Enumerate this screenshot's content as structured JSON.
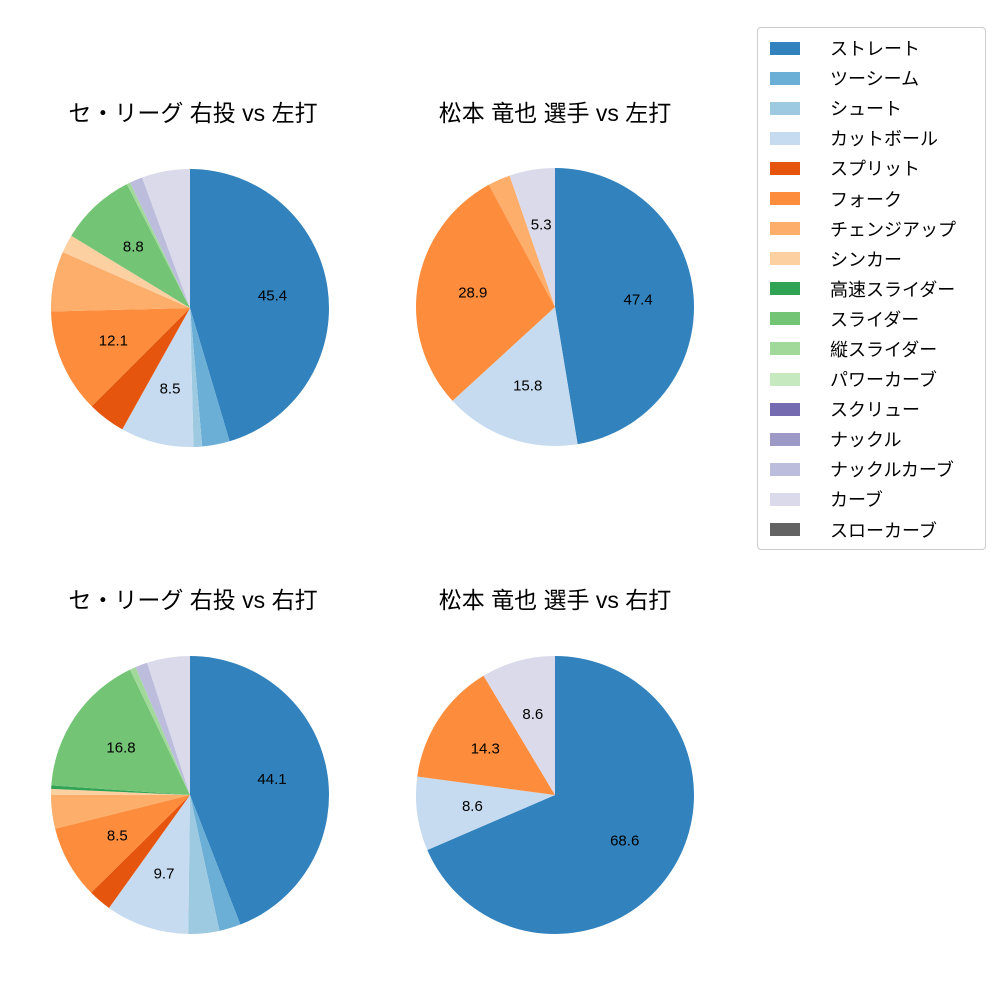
{
  "legend": {
    "items": [
      {
        "name": "ストレート",
        "color": "#3182bd"
      },
      {
        "name": "ツーシーム",
        "color": "#6baed6"
      },
      {
        "name": "シュート",
        "color": "#9ecae1"
      },
      {
        "name": "カットボール",
        "color": "#c6dbef"
      },
      {
        "name": "スプリット",
        "color": "#e6550d"
      },
      {
        "name": "フォーク",
        "color": "#fd8d3c"
      },
      {
        "name": "チェンジアップ",
        "color": "#fdae6b"
      },
      {
        "name": "シンカー",
        "color": "#fdd0a2"
      },
      {
        "name": "高速スライダー",
        "color": "#31a354"
      },
      {
        "name": "スライダー",
        "color": "#74c476"
      },
      {
        "name": "縦スライダー",
        "color": "#a1d99b"
      },
      {
        "name": "パワーカーブ",
        "color": "#c7e9c0"
      },
      {
        "name": "スクリュー",
        "color": "#756bb1"
      },
      {
        "name": "ナックル",
        "color": "#9e9ac8"
      },
      {
        "name": "ナックルカーブ",
        "color": "#bcbddc"
      },
      {
        "name": "カーブ",
        "color": "#dadaeb"
      },
      {
        "name": "スローカーブ",
        "color": "#636363"
      }
    ]
  },
  "chart_data": [
    {
      "type": "pie",
      "title": "セ・リーグ 右投 vs 左打",
      "start_angle": "top",
      "direction": "clockwise",
      "slices": [
        {
          "name": "ストレート",
          "value": 45.4,
          "label": "45.4"
        },
        {
          "name": "ツーシーム",
          "value": 3.2,
          "label": ""
        },
        {
          "name": "シュート",
          "value": 1.0,
          "label": ""
        },
        {
          "name": "カットボール",
          "value": 8.5,
          "label": "8.5"
        },
        {
          "name": "スプリット",
          "value": 4.4,
          "label": ""
        },
        {
          "name": "フォーク",
          "value": 12.1,
          "label": "12.1"
        },
        {
          "name": "チェンジアップ",
          "value": 7.0,
          "label": ""
        },
        {
          "name": "シンカー",
          "value": 2.1,
          "label": ""
        },
        {
          "name": "スライダー",
          "value": 8.8,
          "label": "8.8"
        },
        {
          "name": "縦スライダー",
          "value": 0.4,
          "label": ""
        },
        {
          "name": "ナックルカーブ",
          "value": 1.5,
          "label": ""
        },
        {
          "name": "カーブ",
          "value": 5.6,
          "label": ""
        }
      ]
    },
    {
      "type": "pie",
      "title": "松本 竜也 選手 vs 左打",
      "start_angle": "top",
      "direction": "clockwise",
      "slices": [
        {
          "name": "ストレート",
          "value": 47.4,
          "label": "47.4"
        },
        {
          "name": "カットボール",
          "value": 15.8,
          "label": "15.8"
        },
        {
          "name": "フォーク",
          "value": 28.9,
          "label": "28.9"
        },
        {
          "name": "チェンジアップ",
          "value": 2.6,
          "label": ""
        },
        {
          "name": "カーブ",
          "value": 5.3,
          "label": "5.3"
        }
      ]
    },
    {
      "type": "pie",
      "title": "セ・リーグ 右投 vs 右打",
      "start_angle": "top",
      "direction": "clockwise",
      "slices": [
        {
          "name": "ストレート",
          "value": 44.1,
          "label": "44.1"
        },
        {
          "name": "ツーシーム",
          "value": 2.5,
          "label": ""
        },
        {
          "name": "シュート",
          "value": 3.6,
          "label": ""
        },
        {
          "name": "カットボール",
          "value": 9.7,
          "label": "9.7"
        },
        {
          "name": "スプリット",
          "value": 2.7,
          "label": ""
        },
        {
          "name": "フォーク",
          "value": 8.5,
          "label": "8.5"
        },
        {
          "name": "チェンジアップ",
          "value": 3.9,
          "label": ""
        },
        {
          "name": "シンカー",
          "value": 0.7,
          "label": ""
        },
        {
          "name": "高速スライダー",
          "value": 0.4,
          "label": ""
        },
        {
          "name": "スライダー",
          "value": 16.8,
          "label": "16.8"
        },
        {
          "name": "縦スライダー",
          "value": 0.7,
          "label": ""
        },
        {
          "name": "ナックルカーブ",
          "value": 1.4,
          "label": ""
        },
        {
          "name": "カーブ",
          "value": 5.0,
          "label": ""
        }
      ]
    },
    {
      "type": "pie",
      "title": "松本 竜也 選手 vs 右打",
      "start_angle": "top",
      "direction": "clockwise",
      "slices": [
        {
          "name": "ストレート",
          "value": 68.6,
          "label": "68.6"
        },
        {
          "name": "カットボール",
          "value": 8.6,
          "label": "8.6"
        },
        {
          "name": "フォーク",
          "value": 14.3,
          "label": "14.3"
        },
        {
          "name": "カーブ",
          "value": 8.6,
          "label": "8.6"
        }
      ]
    }
  ]
}
